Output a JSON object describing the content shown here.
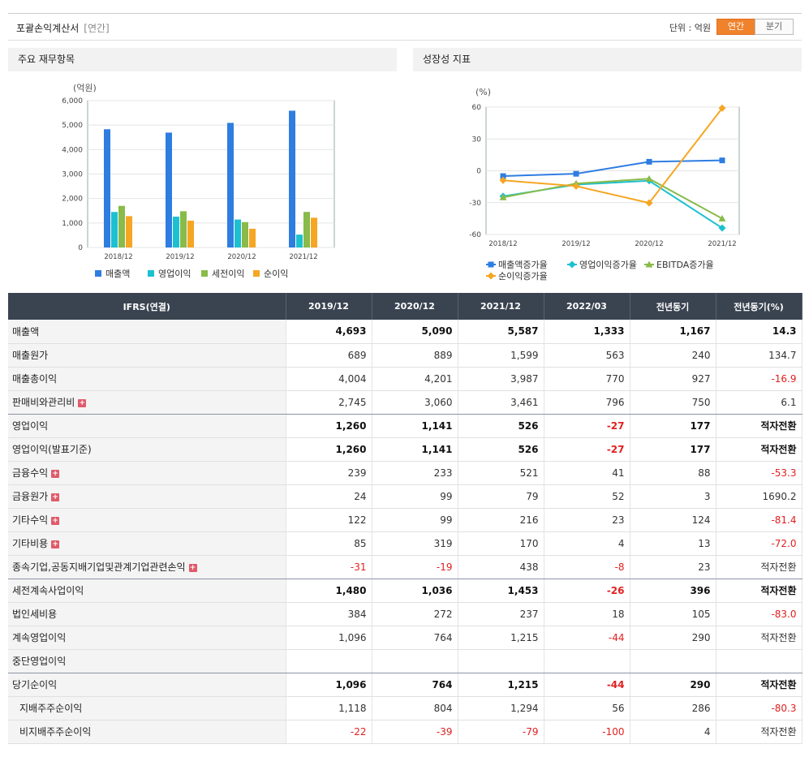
{
  "header": {
    "title": "포괄손익계산서",
    "subtitle": "[연간]",
    "unit_label": "단위 : 억원",
    "toggle_annual": "연간",
    "toggle_quarter": "분기"
  },
  "panels": {
    "left_title": "주요 재무항목",
    "right_title": "성장성 지표"
  },
  "chart_data": [
    {
      "type": "bar",
      "unit_label": "(억원)",
      "categories": [
        "2018/12",
        "2019/12",
        "2020/12",
        "2021/12"
      ],
      "series": [
        {
          "name": "매출액",
          "color": "#2e7de1",
          "values": [
            4830,
            4693,
            5090,
            5587
          ]
        },
        {
          "name": "영업이익",
          "color": "#1cc0d0",
          "values": [
            1450,
            1260,
            1141,
            526
          ]
        },
        {
          "name": "세전이익",
          "color": "#88bb4a",
          "values": [
            1700,
            1480,
            1036,
            1453
          ]
        },
        {
          "name": "순이익",
          "color": "#f5a623",
          "values": [
            1280,
            1096,
            764,
            1215
          ]
        }
      ],
      "ylim": [
        0,
        6000
      ],
      "yticks": [
        "0",
        "1,000",
        "2,000",
        "3,000",
        "4,000",
        "5,000",
        "6,000"
      ],
      "legend": "bottom"
    },
    {
      "type": "line",
      "unit_label": "(%)",
      "categories": [
        "2018/12",
        "2019/12",
        "2020/12",
        "2021/12"
      ],
      "series": [
        {
          "name": "매출액증가율",
          "color": "#2e7de1",
          "marker": "square",
          "values": [
            -5,
            -2.8,
            8.5,
            9.8
          ]
        },
        {
          "name": "영업이익증가율",
          "color": "#1cc0d0",
          "marker": "diamond",
          "values": [
            -24,
            -13,
            -9.4,
            -53.9
          ]
        },
        {
          "name": "EBITDA증가율",
          "color": "#88bb4a",
          "marker": "triangle",
          "values": [
            -25,
            -12,
            -7.5,
            -45
          ]
        },
        {
          "name": "순이익증가율",
          "color": "#f5a623",
          "marker": "diamond",
          "values": [
            -9,
            -14.4,
            -30.3,
            59
          ]
        }
      ],
      "ylim": [
        -60,
        60
      ],
      "yticks": [
        "60",
        "30",
        "0",
        "-30",
        "-60"
      ],
      "legend": "bottom"
    }
  ],
  "table": {
    "headers": [
      "IFRS(연결)",
      "2019/12",
      "2020/12",
      "2021/12",
      "2022/03",
      "전년동기",
      "전년동기(%)"
    ],
    "rows": [
      {
        "label": "매출액",
        "values": [
          "4,693",
          "5,090",
          "5,587",
          "1,333",
          "1,167",
          "14.3"
        ]
      },
      {
        "label": "매출원가",
        "values": [
          "689",
          "889",
          "1,599",
          "563",
          "240",
          "134.7"
        ]
      },
      {
        "label": "매출총이익",
        "values": [
          "4,004",
          "4,201",
          "3,987",
          "770",
          "927",
          "-16.9"
        ]
      },
      {
        "label": "판매비와관리비",
        "values": [
          "2,745",
          "3,060",
          "3,461",
          "796",
          "750",
          "6.1"
        ]
      },
      {
        "label": "영업이익",
        "values": [
          "1,260",
          "1,141",
          "526",
          "-27",
          "177",
          "적자전환"
        ]
      },
      {
        "label": "영업이익(발표기준)",
        "values": [
          "1,260",
          "1,141",
          "526",
          "-27",
          "177",
          "적자전환"
        ]
      },
      {
        "label": "금융수익",
        "values": [
          "239",
          "233",
          "521",
          "41",
          "88",
          "-53.3"
        ]
      },
      {
        "label": "금융원가",
        "values": [
          "24",
          "99",
          "79",
          "52",
          "3",
          "1690.2"
        ]
      },
      {
        "label": "기타수익",
        "values": [
          "122",
          "99",
          "216",
          "23",
          "124",
          "-81.4"
        ]
      },
      {
        "label": "기타비용",
        "values": [
          "85",
          "319",
          "170",
          "4",
          "13",
          "-72.0"
        ]
      },
      {
        "label": "종속기업,공동지배기업및관계기업관련손익",
        "values": [
          "-31",
          "-19",
          "438",
          "-8",
          "23",
          "적자전환"
        ]
      },
      {
        "label": "세전계속사업이익",
        "values": [
          "1,480",
          "1,036",
          "1,453",
          "-26",
          "396",
          "적자전환"
        ]
      },
      {
        "label": "법인세비용",
        "values": [
          "384",
          "272",
          "237",
          "18",
          "105",
          "-83.0"
        ]
      },
      {
        "label": "계속영업이익",
        "values": [
          "1,096",
          "764",
          "1,215",
          "-44",
          "290",
          "적자전환"
        ]
      },
      {
        "label": "중단영업이익",
        "values": [
          "",
          "",
          "",
          "",
          "",
          ""
        ]
      },
      {
        "label": "당기순이익",
        "values": [
          "1,096",
          "764",
          "1,215",
          "-44",
          "290",
          "적자전환"
        ]
      },
      {
        "label": "지배주주순이익",
        "values": [
          "1,118",
          "804",
          "1,294",
          "56",
          "286",
          "-80.3"
        ]
      },
      {
        "label": "비지배주주순이익",
        "values": [
          "-22",
          "-39",
          "-79",
          "-100",
          "4",
          "적자전환"
        ]
      }
    ]
  }
}
